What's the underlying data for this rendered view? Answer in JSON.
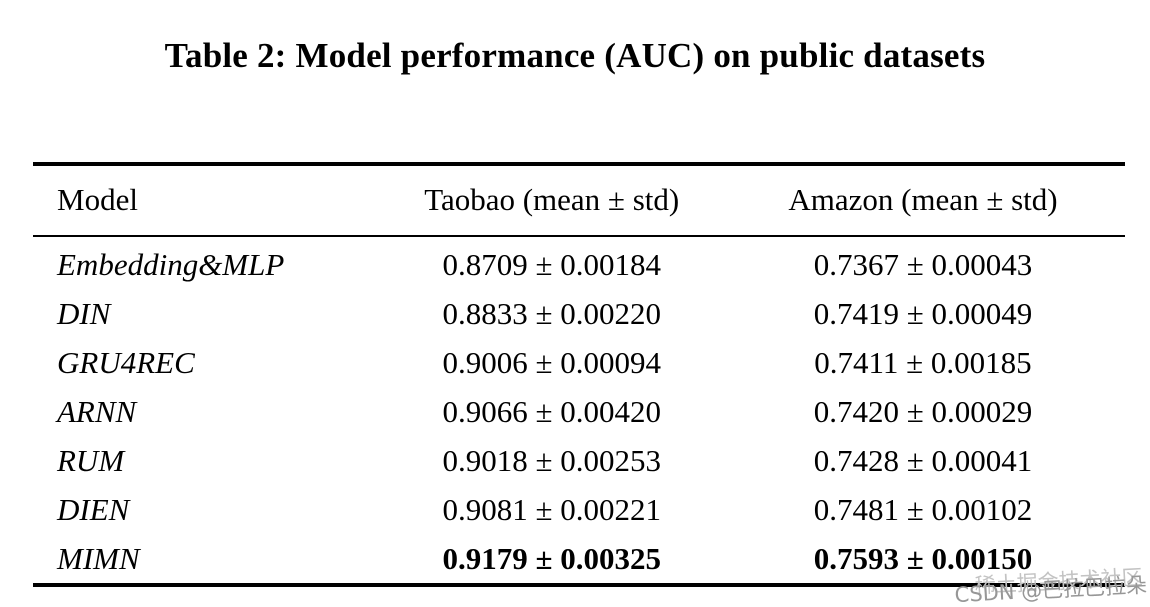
{
  "caption": "Table 2: Model performance (AUC) on public datasets",
  "table": {
    "columns": {
      "model": "Model",
      "taobao": "Taobao (mean ± std)",
      "amazon": "Amazon (mean ± std)"
    },
    "rows": [
      {
        "model": "Embedding&MLP",
        "taobao": "0.8709 ± 0.00184",
        "amazon": "0.7367 ± 0.00043",
        "bold": false
      },
      {
        "model": "DIN",
        "taobao": "0.8833 ± 0.00220",
        "amazon": "0.7419 ± 0.00049",
        "bold": false
      },
      {
        "model": "GRU4REC",
        "taobao": "0.9006 ± 0.00094",
        "amazon": "0.7411 ± 0.00185",
        "bold": false
      },
      {
        "model": "ARNN",
        "taobao": "0.9066 ± 0.00420",
        "amazon": "0.7420 ± 0.00029",
        "bold": false
      },
      {
        "model": "RUM",
        "taobao": "0.9018 ± 0.00253",
        "amazon": "0.7428 ± 0.00041",
        "bold": false
      },
      {
        "model": "DIEN",
        "taobao": "0.9081 ± 0.00221",
        "amazon": "0.7481 ± 0.00102",
        "bold": false
      },
      {
        "model": "MIMN",
        "taobao": "0.9179 ± 0.00325",
        "amazon": "0.7593 ± 0.00150",
        "bold": true
      }
    ]
  },
  "watermark": {
    "community_text": "稀土掘金技术社区",
    "csdn_text": "CSDN @巴拉巴拉朵",
    "faint_color": "#c3c3c3",
    "dark_color": "#979797"
  }
}
